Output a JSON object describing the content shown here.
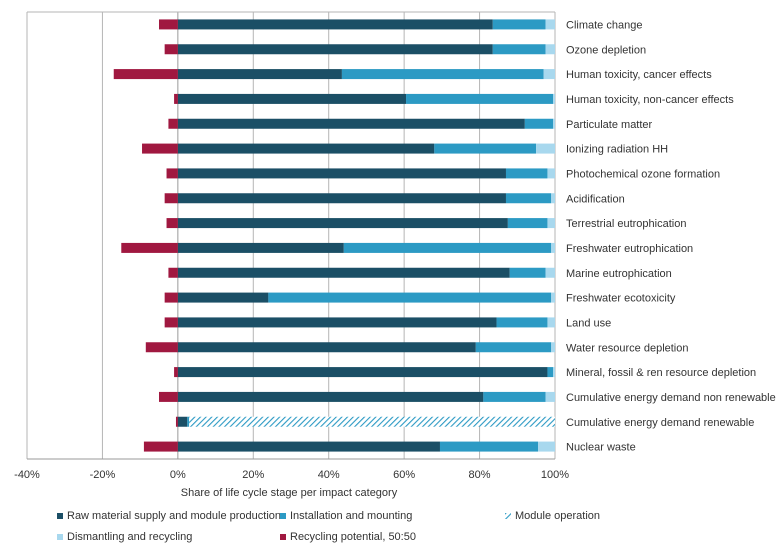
{
  "chart_data": {
    "type": "bar",
    "orientation": "horizontal",
    "stacked": true,
    "xlabel": "Share of life cycle stage per impact category",
    "xlim": [
      -40,
      100
    ],
    "xticks": [
      "-40%",
      "-20%",
      "0%",
      "20%",
      "40%",
      "60%",
      "80%",
      "100%"
    ],
    "grid": "vertical",
    "legend_position": "bottom",
    "categories": [
      "Climate change",
      "Ozone depletion",
      "Human toxicity, cancer effects",
      "Human toxicity, non-cancer effects",
      "Particulate matter",
      "Ionizing radiation HH",
      "Photochemical ozone formation",
      "Acidification",
      "Terrestrial eutrophication",
      "Freshwater eutrophication",
      "Marine eutrophication",
      "Freshwater ecotoxicity",
      "Land use",
      "Water resource depletion",
      "Mineral, fossil & ren resource depletion",
      "Cumulative energy demand non renewable",
      "Cumulative energy demand renewable",
      "Nuclear waste"
    ],
    "series": [
      {
        "name": "Raw material supply and module production",
        "color": "#1b4f66",
        "values": [
          83.5,
          83.5,
          43.5,
          60.5,
          92,
          68,
          87,
          87,
          87.5,
          44,
          88,
          24,
          84.5,
          79,
          98,
          81,
          2.5,
          69.5
        ]
      },
      {
        "name": "Installation and mounting",
        "color": "#2c9ac4",
        "values": [
          14,
          14,
          53.5,
          39,
          7.5,
          27,
          11,
          12,
          10.5,
          55,
          9.5,
          75,
          13.5,
          20,
          1.5,
          16.5,
          0.5,
          26
        ]
      },
      {
        "name": "Module operation",
        "color": "#2c9ac4",
        "pattern": "diagonal-hatch",
        "values": [
          0,
          0,
          0,
          0,
          0,
          0,
          0,
          0,
          0,
          0,
          0,
          0,
          0,
          0,
          0,
          0,
          97,
          0
        ]
      },
      {
        "name": "Dismantling and recycling",
        "color": "#a8d8ee",
        "values": [
          2.5,
          2.5,
          3,
          0.5,
          0.5,
          5,
          2,
          1,
          2,
          1,
          2.5,
          1,
          2,
          1,
          0.5,
          2.5,
          0,
          4.5
        ]
      },
      {
        "name": "Recycling potential, 50:50",
        "color": "#a01840",
        "values": [
          -5,
          -3.5,
          -17,
          -1,
          -2.5,
          -9.5,
          -3,
          -3.5,
          -3,
          -15,
          -2.5,
          -3.5,
          -3.5,
          -8.5,
          -1,
          -5,
          -0.5,
          -9
        ]
      }
    ]
  }
}
